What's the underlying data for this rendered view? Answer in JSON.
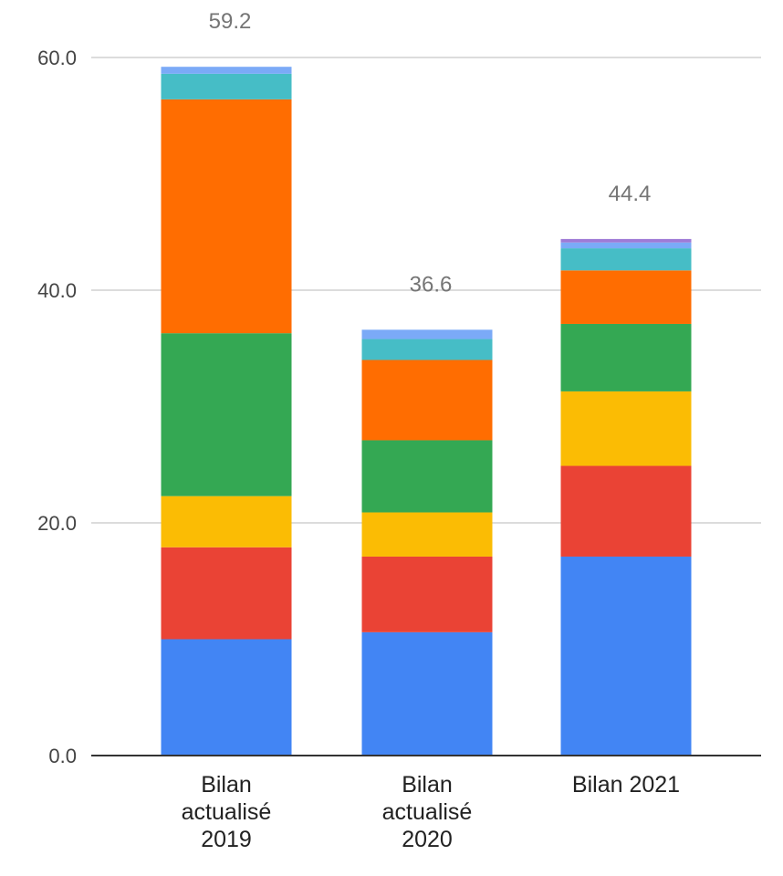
{
  "chart_data": {
    "type": "bar",
    "stacked": true,
    "categories": [
      [
        "Bilan",
        "actualisé",
        "2019"
      ],
      [
        "Bilan",
        "actualisé",
        "2020"
      ],
      [
        "Bilan 2021"
      ]
    ],
    "totals": [
      "59.2",
      "36.6",
      "44.4"
    ],
    "series": [
      {
        "color": "#4285f4",
        "values": [
          10.0,
          10.6,
          17.1
        ]
      },
      {
        "color": "#ea4335",
        "values": [
          7.9,
          6.5,
          7.8
        ]
      },
      {
        "color": "#fbbc04",
        "values": [
          4.4,
          3.8,
          6.4
        ]
      },
      {
        "color": "#34a853",
        "values": [
          14.0,
          6.2,
          5.8
        ]
      },
      {
        "color": "#ff6d01",
        "values": [
          20.1,
          6.9,
          4.6
        ]
      },
      {
        "color": "#46bdc6",
        "values": [
          2.2,
          1.8,
          1.9
        ]
      },
      {
        "color": "#7baaf7",
        "values": [
          0.6,
          0.8,
          0.5
        ]
      },
      {
        "color": "#9e7ad6",
        "values": [
          0.0,
          0.0,
          0.3
        ]
      }
    ],
    "ylim": [
      0,
      60
    ],
    "yticks": [
      "0.0",
      "20.0",
      "40.0",
      "60.0"
    ],
    "grid": true,
    "legend": "none"
  }
}
